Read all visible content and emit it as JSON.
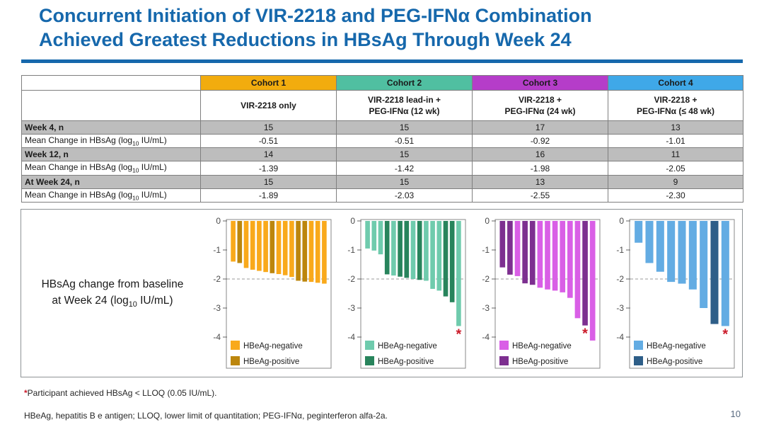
{
  "slide": {
    "title_line1": "Concurrent Initiation of VIR-2218 and PEG-IFNα Combination",
    "title_line2": "Achieved Greatest Reductions in HBsAg Through Week 24",
    "page_number": "10",
    "accent_blue": "#1668AC"
  },
  "table": {
    "cohort_headers": [
      {
        "label": "Cohort 1",
        "color": "#F2AC0E"
      },
      {
        "label": "Cohort 2",
        "color": "#50BFA1"
      },
      {
        "label": "Cohort 3",
        "color": "#B53DC9"
      },
      {
        "label": "Cohort 4",
        "color": "#3FA8E8"
      }
    ],
    "treatments": [
      "VIR-2218 only",
      "VIR-2218 lead-in +\nPEG-IFNα (12 wk)",
      "VIR-2218 +\nPEG-IFNα (24 wk)",
      "VIR-2218 +\nPEG-IFNα (≤ 48 wk)"
    ],
    "mean_label": {
      "prefix": "Mean Change in HBsAg (log",
      "sub": "10",
      "suffix": " IU/mL)"
    },
    "rows": [
      {
        "type": "n",
        "label": "Week 4, n",
        "values": [
          "15",
          "15",
          "17",
          "13"
        ]
      },
      {
        "type": "mean",
        "label": "Mean Change in HBsAg (log10 IU/mL)",
        "values": [
          "-0.51",
          "-0.51",
          "-0.92",
          "-1.01"
        ]
      },
      {
        "type": "n",
        "label": "Week 12, n",
        "values": [
          "14",
          "15",
          "16",
          "11"
        ]
      },
      {
        "type": "mean",
        "label": "Mean Change in HBsAg (log10 IU/mL)",
        "values": [
          "-1.39",
          "-1.42",
          "-1.98",
          "-2.05"
        ]
      },
      {
        "type": "n",
        "label": "At Week 24, n",
        "values": [
          "15",
          "15",
          "13",
          "9"
        ]
      },
      {
        "type": "mean",
        "label": "Mean Change in HBsAg (log10 IU/mL)",
        "values": [
          "-1.89",
          "-2.03",
          "-2.55",
          "-2.30"
        ]
      }
    ]
  },
  "chart_panel": {
    "label_line1": "HBsAg change from baseline",
    "label_line2_prefix": "at Week 24 (log",
    "label_line2_sub": "10",
    "label_line2_suffix": " IU/mL)"
  },
  "chart_data": [
    {
      "id": "cohort-1",
      "type": "bar",
      "title": "Cohort 1 waterfall: HBsAg change from baseline at Week 24 (log10 IU/mL)",
      "ylabel": "HBsAg change from baseline at Week 24 (log10 IU/mL)",
      "ylim": [
        0,
        -4
      ],
      "yticks": [
        0,
        -1,
        -2,
        -3,
        -4
      ],
      "reference_line": -2,
      "grid": false,
      "legend_position": "bottom-left",
      "legend": {
        "neg": "HBeAg-negative",
        "pos": "HBeAg-positive"
      },
      "colors": {
        "neg": "#F9A91B",
        "pos": "#BC860D"
      },
      "values": [
        -1.4,
        -1.45,
        -1.62,
        -1.68,
        -1.72,
        -1.76,
        -1.8,
        -1.83,
        -1.87,
        -1.93,
        -2.06,
        -2.09,
        -2.1,
        -2.13,
        -2.16
      ],
      "flags": [
        "neg",
        "pos",
        "neg",
        "neg",
        "neg",
        "neg",
        "pos",
        "neg",
        "neg",
        "neg",
        "pos",
        "pos",
        "neg",
        "neg",
        "neg"
      ],
      "lloq_index": null
    },
    {
      "id": "cohort-2",
      "type": "bar",
      "title": "Cohort 2 waterfall: HBsAg change from baseline at Week 24 (log10 IU/mL)",
      "ylabel": "HBsAg change from baseline at Week 24 (log10 IU/mL)",
      "ylim": [
        0,
        -4
      ],
      "yticks": [
        0,
        -1,
        -2,
        -3,
        -4
      ],
      "reference_line": -2,
      "grid": false,
      "legend_position": "bottom-left",
      "legend": {
        "neg": "HBeAg-negative",
        "pos": "HBeAg-positive"
      },
      "colors": {
        "neg": "#6FCBAD",
        "pos": "#28845C"
      },
      "values": [
        -0.95,
        -1.02,
        -1.15,
        -1.84,
        -1.88,
        -1.92,
        -1.96,
        -2.0,
        -2.03,
        -2.06,
        -2.34,
        -2.4,
        -2.6,
        -2.8,
        -3.62
      ],
      "flags": [
        "neg",
        "neg",
        "neg",
        "pos",
        "neg",
        "pos",
        "pos",
        "neg",
        "pos",
        "neg",
        "neg",
        "neg",
        "pos",
        "pos",
        "neg"
      ],
      "lloq_index": 14
    },
    {
      "id": "cohort-3",
      "type": "bar",
      "title": "Cohort 3 waterfall: HBsAg change from baseline at Week 24 (log10 IU/mL)",
      "ylabel": "HBsAg change from baseline at Week 24 (log10 IU/mL)",
      "ylim": [
        0,
        -4
      ],
      "yticks": [
        0,
        -1,
        -2,
        -3,
        -4
      ],
      "reference_line": -2,
      "grid": false,
      "legend_position": "bottom-left",
      "legend": {
        "neg": "HBeAg-negative",
        "pos": "HBeAg-positive"
      },
      "colors": {
        "neg": "#D95FE6",
        "pos": "#7D2F90"
      },
      "values": [
        -1.6,
        -1.85,
        -1.9,
        -2.15,
        -2.2,
        -2.3,
        -2.36,
        -2.4,
        -2.46,
        -2.65,
        -3.35,
        -3.6,
        -4.12
      ],
      "flags": [
        "pos",
        "pos",
        "neg",
        "pos",
        "pos",
        "neg",
        "neg",
        "neg",
        "neg",
        "neg",
        "neg",
        "pos",
        "neg"
      ],
      "lloq_index": 11
    },
    {
      "id": "cohort-4",
      "type": "bar",
      "title": "Cohort 4 waterfall: HBsAg change from baseline at Week 24 (log10 IU/mL)",
      "ylabel": "HBsAg change from baseline at Week 24 (log10 IU/mL)",
      "ylim": [
        0,
        -4
      ],
      "yticks": [
        0,
        -1,
        -2,
        -3,
        -4
      ],
      "reference_line": -2,
      "grid": false,
      "legend_position": "bottom-left",
      "legend": {
        "neg": "HBeAg-negative",
        "pos": "HBeAg-positive"
      },
      "colors": {
        "neg": "#63ACE3",
        "pos": "#2E5E88"
      },
      "values": [
        -0.75,
        -1.45,
        -1.75,
        -2.1,
        -2.16,
        -2.36,
        -3.0,
        -3.55,
        -3.62
      ],
      "flags": [
        "neg",
        "neg",
        "neg",
        "neg",
        "neg",
        "neg",
        "neg",
        "pos",
        "neg"
      ],
      "lloq_index": 8
    }
  ],
  "footnotes": {
    "asterisk": "*",
    "asterisk_color": "#CB1B2A",
    "footnote1": "Participant achieved HBsAg < LLOQ (0.05 IU/mL).",
    "footnote2": "HBeAg, hepatitis B e antigen; LLOQ, lower limit of quantitation; PEG-IFNα, peginterferon alfa-2a."
  }
}
